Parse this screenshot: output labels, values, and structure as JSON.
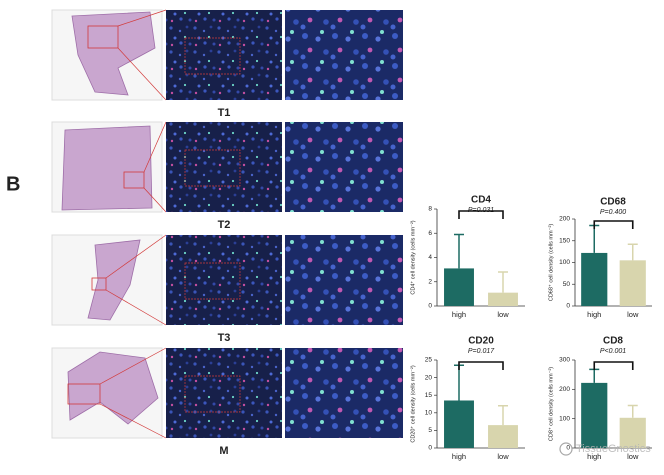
{
  "figure": {
    "panel_label": "B",
    "rows": [
      "T1",
      "T2",
      "T3",
      "M"
    ],
    "watermark": "TissueGnostics"
  },
  "chart_data": [
    {
      "type": "bar",
      "title": "CD4",
      "subtitle": "P=0.031",
      "y_label": "CD4⁺ cell density (cells mm⁻²)",
      "categories": [
        "high",
        "low"
      ],
      "values": [
        3.1,
        1.1
      ],
      "errors": [
        2.8,
        1.7
      ],
      "colors": [
        "#1d6b63",
        "#d8d5ad"
      ],
      "ylim": [
        0,
        8
      ],
      "yticks": [
        0,
        2,
        4,
        6,
        8
      ]
    },
    {
      "type": "bar",
      "title": "CD68",
      "subtitle": "P=0.400",
      "y_label": "CD68⁺ cell density (cells mm⁻²)",
      "categories": [
        "high",
        "low"
      ],
      "values": [
        122,
        105
      ],
      "errors": [
        63,
        37
      ],
      "colors": [
        "#1d6b63",
        "#d8d5ad"
      ],
      "ylim": [
        0,
        200
      ],
      "yticks": [
        0,
        50,
        100,
        150,
        200
      ]
    },
    {
      "type": "bar",
      "title": "CD20",
      "subtitle": "P=0.017",
      "y_label": "CD20⁺ cell density (cells mm⁻²)",
      "categories": [
        "high",
        "low"
      ],
      "values": [
        13.5,
        6.5
      ],
      "errors": [
        10,
        5.5
      ],
      "colors": [
        "#1d6b63",
        "#d8d5ad"
      ],
      "ylim": [
        0,
        25
      ],
      "yticks": [
        0,
        5,
        10,
        15,
        20,
        25
      ]
    },
    {
      "type": "bar",
      "title": "CD8",
      "subtitle": "P<0.001",
      "y_label": "CD8⁺ cell density (cells mm⁻²)",
      "categories": [
        "high",
        "low"
      ],
      "values": [
        222,
        103
      ],
      "errors": [
        46,
        42
      ],
      "colors": [
        "#1d6b63",
        "#d8d5ad"
      ],
      "ylim": [
        0,
        300
      ],
      "yticks": [
        0,
        100,
        200,
        300
      ]
    }
  ]
}
